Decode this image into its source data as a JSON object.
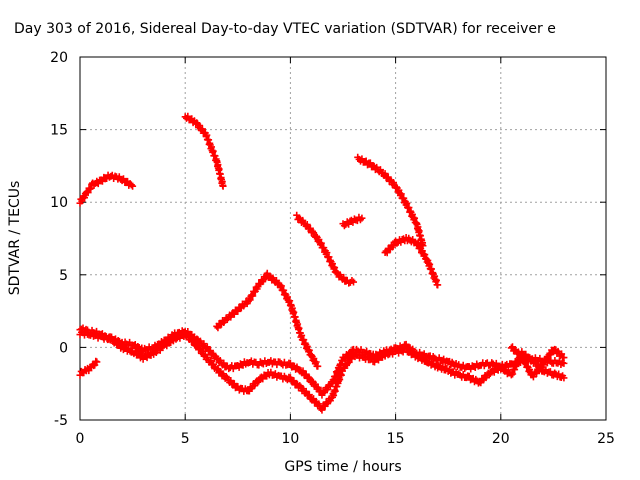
{
  "chart_data": {
    "type": "scatter",
    "title": "Day 303 of 2016, Sidereal Day-to-day VTEC variation (SDTVAR) for receiver e",
    "xlabel": "GPS time / hours",
    "ylabel": "SDTVAR / TECUs",
    "xlim": [
      0,
      25
    ],
    "ylim": [
      -5,
      20
    ],
    "xticks": [
      "0",
      "5",
      "10",
      "15",
      "20",
      "25"
    ],
    "yticks": [
      "-5",
      "0",
      "5",
      "10",
      "15",
      "20"
    ],
    "grid": true,
    "marker": "+",
    "color": "#ff0000",
    "series": [
      {
        "x": [
          0.0,
          0.3,
          0.6,
          1.0,
          1.4,
          1.8,
          2.2,
          2.5
        ],
        "y": [
          10.0,
          10.6,
          11.2,
          11.5,
          11.8,
          11.7,
          11.4,
          11.1
        ]
      },
      {
        "x": [
          0.0,
          0.3,
          0.6,
          0.8
        ],
        "y": [
          -1.8,
          -1.6,
          -1.3,
          -1.0
        ]
      },
      {
        "x": [
          0.0,
          0.5,
          1.0,
          1.5,
          2.0,
          2.5,
          3.0,
          3.5,
          4.0,
          4.5,
          5.0,
          5.5,
          6.0,
          6.5,
          7.0,
          7.5,
          8.0,
          8.5,
          9.0,
          9.5,
          10.0,
          10.5,
          11.0,
          11.5,
          12.0,
          12.5,
          13.0,
          13.5,
          14.0,
          14.5,
          15.0,
          15.5,
          16.0,
          16.5,
          17.0,
          17.5,
          18.0,
          18.5,
          19.0,
          19.5,
          20.0,
          20.5,
          21.0,
          21.5,
          22.0,
          22.5,
          23.0
        ],
        "y": [
          1.0,
          0.9,
          0.7,
          0.6,
          0.3,
          0.2,
          -0.2,
          0.0,
          0.4,
          0.9,
          1.1,
          0.6,
          0.0,
          -0.8,
          -1.4,
          -1.3,
          -1.0,
          -1.1,
          -1.0,
          -1.1,
          -1.2,
          -1.6,
          -2.3,
          -3.2,
          -2.4,
          -0.8,
          -0.2,
          -0.3,
          -0.6,
          -0.3,
          -0.1,
          0.1,
          -0.4,
          -0.6,
          -0.8,
          -1.0,
          -1.3,
          -1.4,
          -1.2,
          -1.1,
          -1.3,
          -1.2,
          -0.9,
          -0.8,
          -0.9,
          -1.0,
          -1.1
        ]
      },
      {
        "x": [
          0.0,
          0.5,
          1.0,
          1.5,
          2.0,
          2.5,
          3.0,
          3.5,
          4.0,
          4.5,
          5.0,
          5.5,
          6.0,
          6.5,
          7.0,
          7.5,
          8.0,
          8.5,
          9.0,
          9.5,
          10.0,
          10.5,
          11.0,
          11.5,
          12.0,
          12.5,
          13.0,
          13.5,
          14.0,
          14.5,
          15.0,
          15.5,
          16.0,
          16.5,
          17.0,
          17.5,
          18.0,
          18.5,
          19.0,
          19.5,
          20.0,
          20.5,
          21.0,
          21.5,
          22.0,
          22.5,
          23.0
        ],
        "y": [
          1.3,
          1.1,
          0.9,
          0.5,
          0.0,
          -0.3,
          -0.7,
          -0.4,
          0.1,
          0.6,
          0.9,
          0.2,
          -0.7,
          -1.5,
          -2.2,
          -2.8,
          -3.0,
          -2.2,
          -1.8,
          -2.0,
          -2.2,
          -2.8,
          -3.5,
          -4.2,
          -3.4,
          -1.5,
          -0.5,
          -0.7,
          -0.9,
          -0.5,
          -0.3,
          -0.2,
          -0.6,
          -1.0,
          -1.3,
          -1.6,
          -1.9,
          -2.1,
          -2.4,
          -1.7,
          -1.4,
          -1.9,
          -0.4,
          -0.9,
          -1.6,
          -1.8,
          -2.1
        ]
      },
      {
        "x": [
          5.0,
          5.5,
          6.0,
          6.5,
          6.8
        ],
        "y": [
          15.9,
          15.5,
          14.6,
          12.8,
          11.1
        ]
      },
      {
        "x": [
          6.5,
          7.0,
          7.5,
          8.0,
          8.5,
          8.9,
          9.5,
          10.0,
          10.5,
          11.0,
          11.3
        ],
        "y": [
          1.4,
          2.0,
          2.6,
          3.2,
          4.3,
          5.0,
          4.3,
          3.0,
          0.8,
          -0.6,
          -1.3
        ]
      },
      {
        "x": [
          10.3,
          10.7,
          11.2,
          11.7,
          12.2,
          12.7,
          13.0
        ],
        "y": [
          9.0,
          8.5,
          7.7,
          6.5,
          5.1,
          4.5,
          4.5
        ]
      },
      {
        "x": [
          12.5,
          12.9,
          13.4
        ],
        "y": [
          8.4,
          8.7,
          8.9
        ]
      },
      {
        "x": [
          13.2,
          13.8,
          14.4,
          15.0,
          15.5,
          16.0,
          16.3
        ],
        "y": [
          13.0,
          12.6,
          12.0,
          11.1,
          9.9,
          8.5,
          7.0
        ]
      },
      {
        "x": [
          14.5,
          15.0,
          15.5,
          16.0,
          16.5,
          17.0
        ],
        "y": [
          6.5,
          7.2,
          7.5,
          7.2,
          6.0,
          4.3
        ]
      },
      {
        "x": [
          20.5,
          21.0,
          21.5,
          22.0,
          22.5,
          23.0
        ],
        "y": [
          0.0,
          -0.6,
          -2.0,
          -1.2,
          -0.1,
          -0.7
        ]
      }
    ]
  }
}
